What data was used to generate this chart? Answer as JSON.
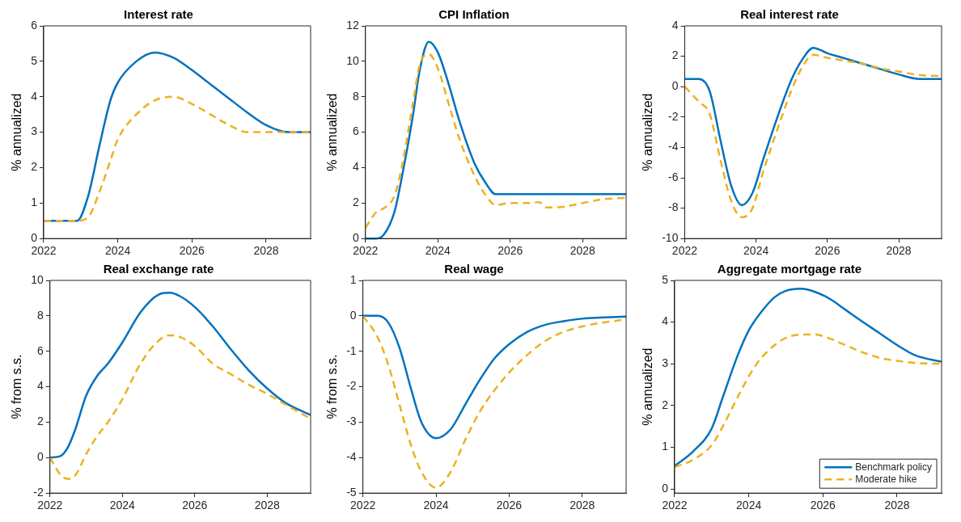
{
  "chart_data": [
    {
      "type": "line",
      "title": "Interest rate",
      "ylabel": "% annualized",
      "xlim": [
        2022,
        2029.2
      ],
      "xticks": [
        2022,
        2024,
        2026,
        2028
      ],
      "ylim": [
        0,
        6
      ],
      "yticks": [
        0,
        1,
        2,
        3,
        4,
        5,
        6
      ],
      "grid": false,
      "marker": "none",
      "legend": false,
      "x": [
        2022,
        2022.5,
        2022.9,
        2023.2,
        2023.5,
        2023.8,
        2024,
        2024.5,
        2025,
        2025.5,
        2026,
        2026.5,
        2027,
        2027.5,
        2028,
        2028.6,
        2029.2
      ],
      "series": [
        {
          "color": "#0072bd",
          "line_style": "solid",
          "values": [
            0.5,
            0.5,
            0.5,
            1.2,
            2.6,
            3.9,
            4.4,
            5.0,
            5.25,
            5.1,
            4.75,
            4.35,
            3.95,
            3.55,
            3.2,
            3.0,
            3.0
          ]
        },
        {
          "color": "#edb120",
          "line_style": "dashed",
          "values": [
            0.5,
            0.5,
            0.5,
            0.6,
            1.3,
            2.2,
            2.8,
            3.5,
            3.9,
            4.0,
            3.8,
            3.5,
            3.2,
            3.0,
            3.0,
            3.0,
            3.0
          ]
        }
      ]
    },
    {
      "type": "line",
      "title": "CPI Inflation",
      "ylabel": "% annualized",
      "xlim": [
        2022,
        2029.2
      ],
      "xticks": [
        2022,
        2024,
        2026,
        2028
      ],
      "ylim": [
        0,
        12
      ],
      "yticks": [
        0,
        2,
        4,
        6,
        8,
        10,
        12
      ],
      "grid": false,
      "marker": "none",
      "legend": false,
      "x": [
        2022,
        2022.3,
        2022.5,
        2022.8,
        2023,
        2023.3,
        2023.5,
        2023.75,
        2024,
        2024.3,
        2024.6,
        2025,
        2025.3,
        2025.6,
        2026,
        2026.5,
        2026.8,
        2027,
        2027.5,
        2028,
        2028.5,
        2029.2
      ],
      "series": [
        {
          "color": "#0072bd",
          "line_style": "solid",
          "values": [
            0,
            0,
            0.2,
            1.5,
            3.4,
            6.8,
            9.5,
            11.1,
            10.5,
            8.7,
            6.6,
            4.3,
            3.2,
            2.5,
            2.5,
            2.5,
            2.5,
            2.5,
            2.5,
            2.5,
            2.5,
            2.5
          ]
        },
        {
          "color": "#edb120",
          "line_style": "dashed",
          "values": [
            0.6,
            1.5,
            1.7,
            2.4,
            4.0,
            7.5,
            9.8,
            10.4,
            9.6,
            7.6,
            5.6,
            3.6,
            2.5,
            1.9,
            2.0,
            2.0,
            2.05,
            1.75,
            1.8,
            2.0,
            2.2,
            2.3
          ]
        }
      ]
    },
    {
      "type": "line",
      "title": "Real interest rate",
      "ylabel": "% annualized",
      "xlim": [
        2022,
        2029.2
      ],
      "xticks": [
        2022,
        2024,
        2026,
        2028
      ],
      "ylim": [
        -10,
        4
      ],
      "yticks": [
        -10,
        -8,
        -6,
        -4,
        -2,
        0,
        2,
        4
      ],
      "grid": false,
      "marker": "none",
      "legend": false,
      "x": [
        2022,
        2022.4,
        2022.7,
        2023,
        2023.3,
        2023.6,
        2023.9,
        2024.2,
        2024.6,
        2025,
        2025.3,
        2025.6,
        2026,
        2026.5,
        2027,
        2027.5,
        2028,
        2028.6,
        2029.2
      ],
      "series": [
        {
          "color": "#0072bd",
          "line_style": "solid",
          "values": [
            0.5,
            0.5,
            -0.3,
            -3.5,
            -6.5,
            -7.8,
            -7.0,
            -4.8,
            -2,
            0.5,
            1.8,
            2.55,
            2.2,
            1.85,
            1.5,
            1.15,
            0.8,
            0.5,
            0.5
          ]
        },
        {
          "color": "#edb120",
          "line_style": "dashed",
          "values": [
            0,
            -1.0,
            -1.8,
            -4.8,
            -7.5,
            -8.6,
            -8.0,
            -5.6,
            -2.8,
            -0.2,
            1.3,
            2.1,
            1.9,
            1.7,
            1.5,
            1.2,
            1.0,
            0.75,
            0.7
          ]
        }
      ]
    },
    {
      "type": "line",
      "title": "Real exchange rate",
      "ylabel": "% from s.s.",
      "xlim": [
        2022,
        2029.2
      ],
      "xticks": [
        2022,
        2024,
        2026,
        2028
      ],
      "ylim": [
        -2,
        10
      ],
      "yticks": [
        -2,
        0,
        2,
        4,
        6,
        8,
        10
      ],
      "grid": false,
      "marker": "none",
      "legend": false,
      "x": [
        2022,
        2022.3,
        2022.5,
        2022.7,
        2023,
        2023.3,
        2023.6,
        2024,
        2024.5,
        2025,
        2025.3,
        2025.6,
        2026,
        2026.5,
        2027,
        2027.5,
        2028,
        2028.5,
        2029.2
      ],
      "series": [
        {
          "color": "#0072bd",
          "line_style": "solid",
          "values": [
            0,
            0.1,
            0.6,
            1.6,
            3.5,
            4.6,
            5.3,
            6.5,
            8.2,
            9.2,
            9.3,
            9.1,
            8.5,
            7.4,
            6.1,
            4.9,
            3.9,
            3.1,
            2.4
          ]
        },
        {
          "color": "#edb120",
          "line_style": "dashed",
          "values": [
            0,
            -1.0,
            -1.2,
            -1.0,
            0.2,
            1.2,
            2.0,
            3.3,
            5.3,
            6.6,
            6.9,
            6.8,
            6.3,
            5.3,
            4.7,
            4.1,
            3.6,
            3.0,
            2.2
          ]
        }
      ]
    },
    {
      "type": "line",
      "title": "Real wage",
      "ylabel": "% from s.s.",
      "xlim": [
        2022,
        2029.2
      ],
      "xticks": [
        2022,
        2024,
        2026,
        2028
      ],
      "ylim": [
        -5,
        1
      ],
      "yticks": [
        -5,
        -4,
        -3,
        -2,
        -1,
        0,
        1
      ],
      "grid": false,
      "marker": "none",
      "legend": false,
      "x": [
        2022,
        2022.4,
        2022.7,
        2023,
        2023.3,
        2023.6,
        2024,
        2024.4,
        2024.8,
        2025.2,
        2025.6,
        2026,
        2026.5,
        2027,
        2027.5,
        2028,
        2028.5,
        2029.2
      ],
      "series": [
        {
          "color": "#0072bd",
          "line_style": "solid",
          "values": [
            0,
            0,
            -0.2,
            -0.9,
            -2.0,
            -3.0,
            -3.45,
            -3.2,
            -2.5,
            -1.8,
            -1.2,
            -0.8,
            -0.45,
            -0.25,
            -0.15,
            -0.08,
            -0.05,
            -0.02
          ]
        },
        {
          "color": "#edb120",
          "line_style": "dashed",
          "values": [
            0,
            -0.6,
            -1.4,
            -2.5,
            -3.6,
            -4.4,
            -4.85,
            -4.4,
            -3.5,
            -2.7,
            -2.1,
            -1.6,
            -1.1,
            -0.7,
            -0.45,
            -0.3,
            -0.2,
            -0.1
          ]
        }
      ]
    },
    {
      "type": "line",
      "title": "Aggregate mortgage rate",
      "ylabel": "% annualized",
      "xlim": [
        2022,
        2029.2
      ],
      "xticks": [
        2022,
        2024,
        2026,
        2028
      ],
      "ylim": [
        -0.1,
        5
      ],
      "yticks": [
        0,
        1,
        2,
        3,
        4,
        5
      ],
      "grid": false,
      "marker": "none",
      "legend": "bottom right",
      "x": [
        2022,
        2022.5,
        2023,
        2023.3,
        2023.7,
        2024,
        2024.3,
        2024.7,
        2025,
        2025.4,
        2025.8,
        2026.2,
        2026.6,
        2027,
        2027.5,
        2028,
        2028.5,
        2029.2
      ],
      "series": [
        {
          "name": "Benchmark policy",
          "color": "#0072bd",
          "line_style": "solid",
          "values": [
            0.55,
            0.9,
            1.45,
            2.2,
            3.2,
            3.8,
            4.2,
            4.6,
            4.75,
            4.8,
            4.72,
            4.55,
            4.3,
            4.05,
            3.75,
            3.45,
            3.2,
            3.05
          ]
        },
        {
          "name": "Moderate hike",
          "color": "#edb120",
          "line_style": "dashed",
          "values": [
            0.52,
            0.7,
            1.05,
            1.5,
            2.2,
            2.7,
            3.1,
            3.45,
            3.62,
            3.7,
            3.7,
            3.6,
            3.45,
            3.3,
            3.15,
            3.07,
            3.02,
            3.0
          ]
        }
      ]
    }
  ]
}
